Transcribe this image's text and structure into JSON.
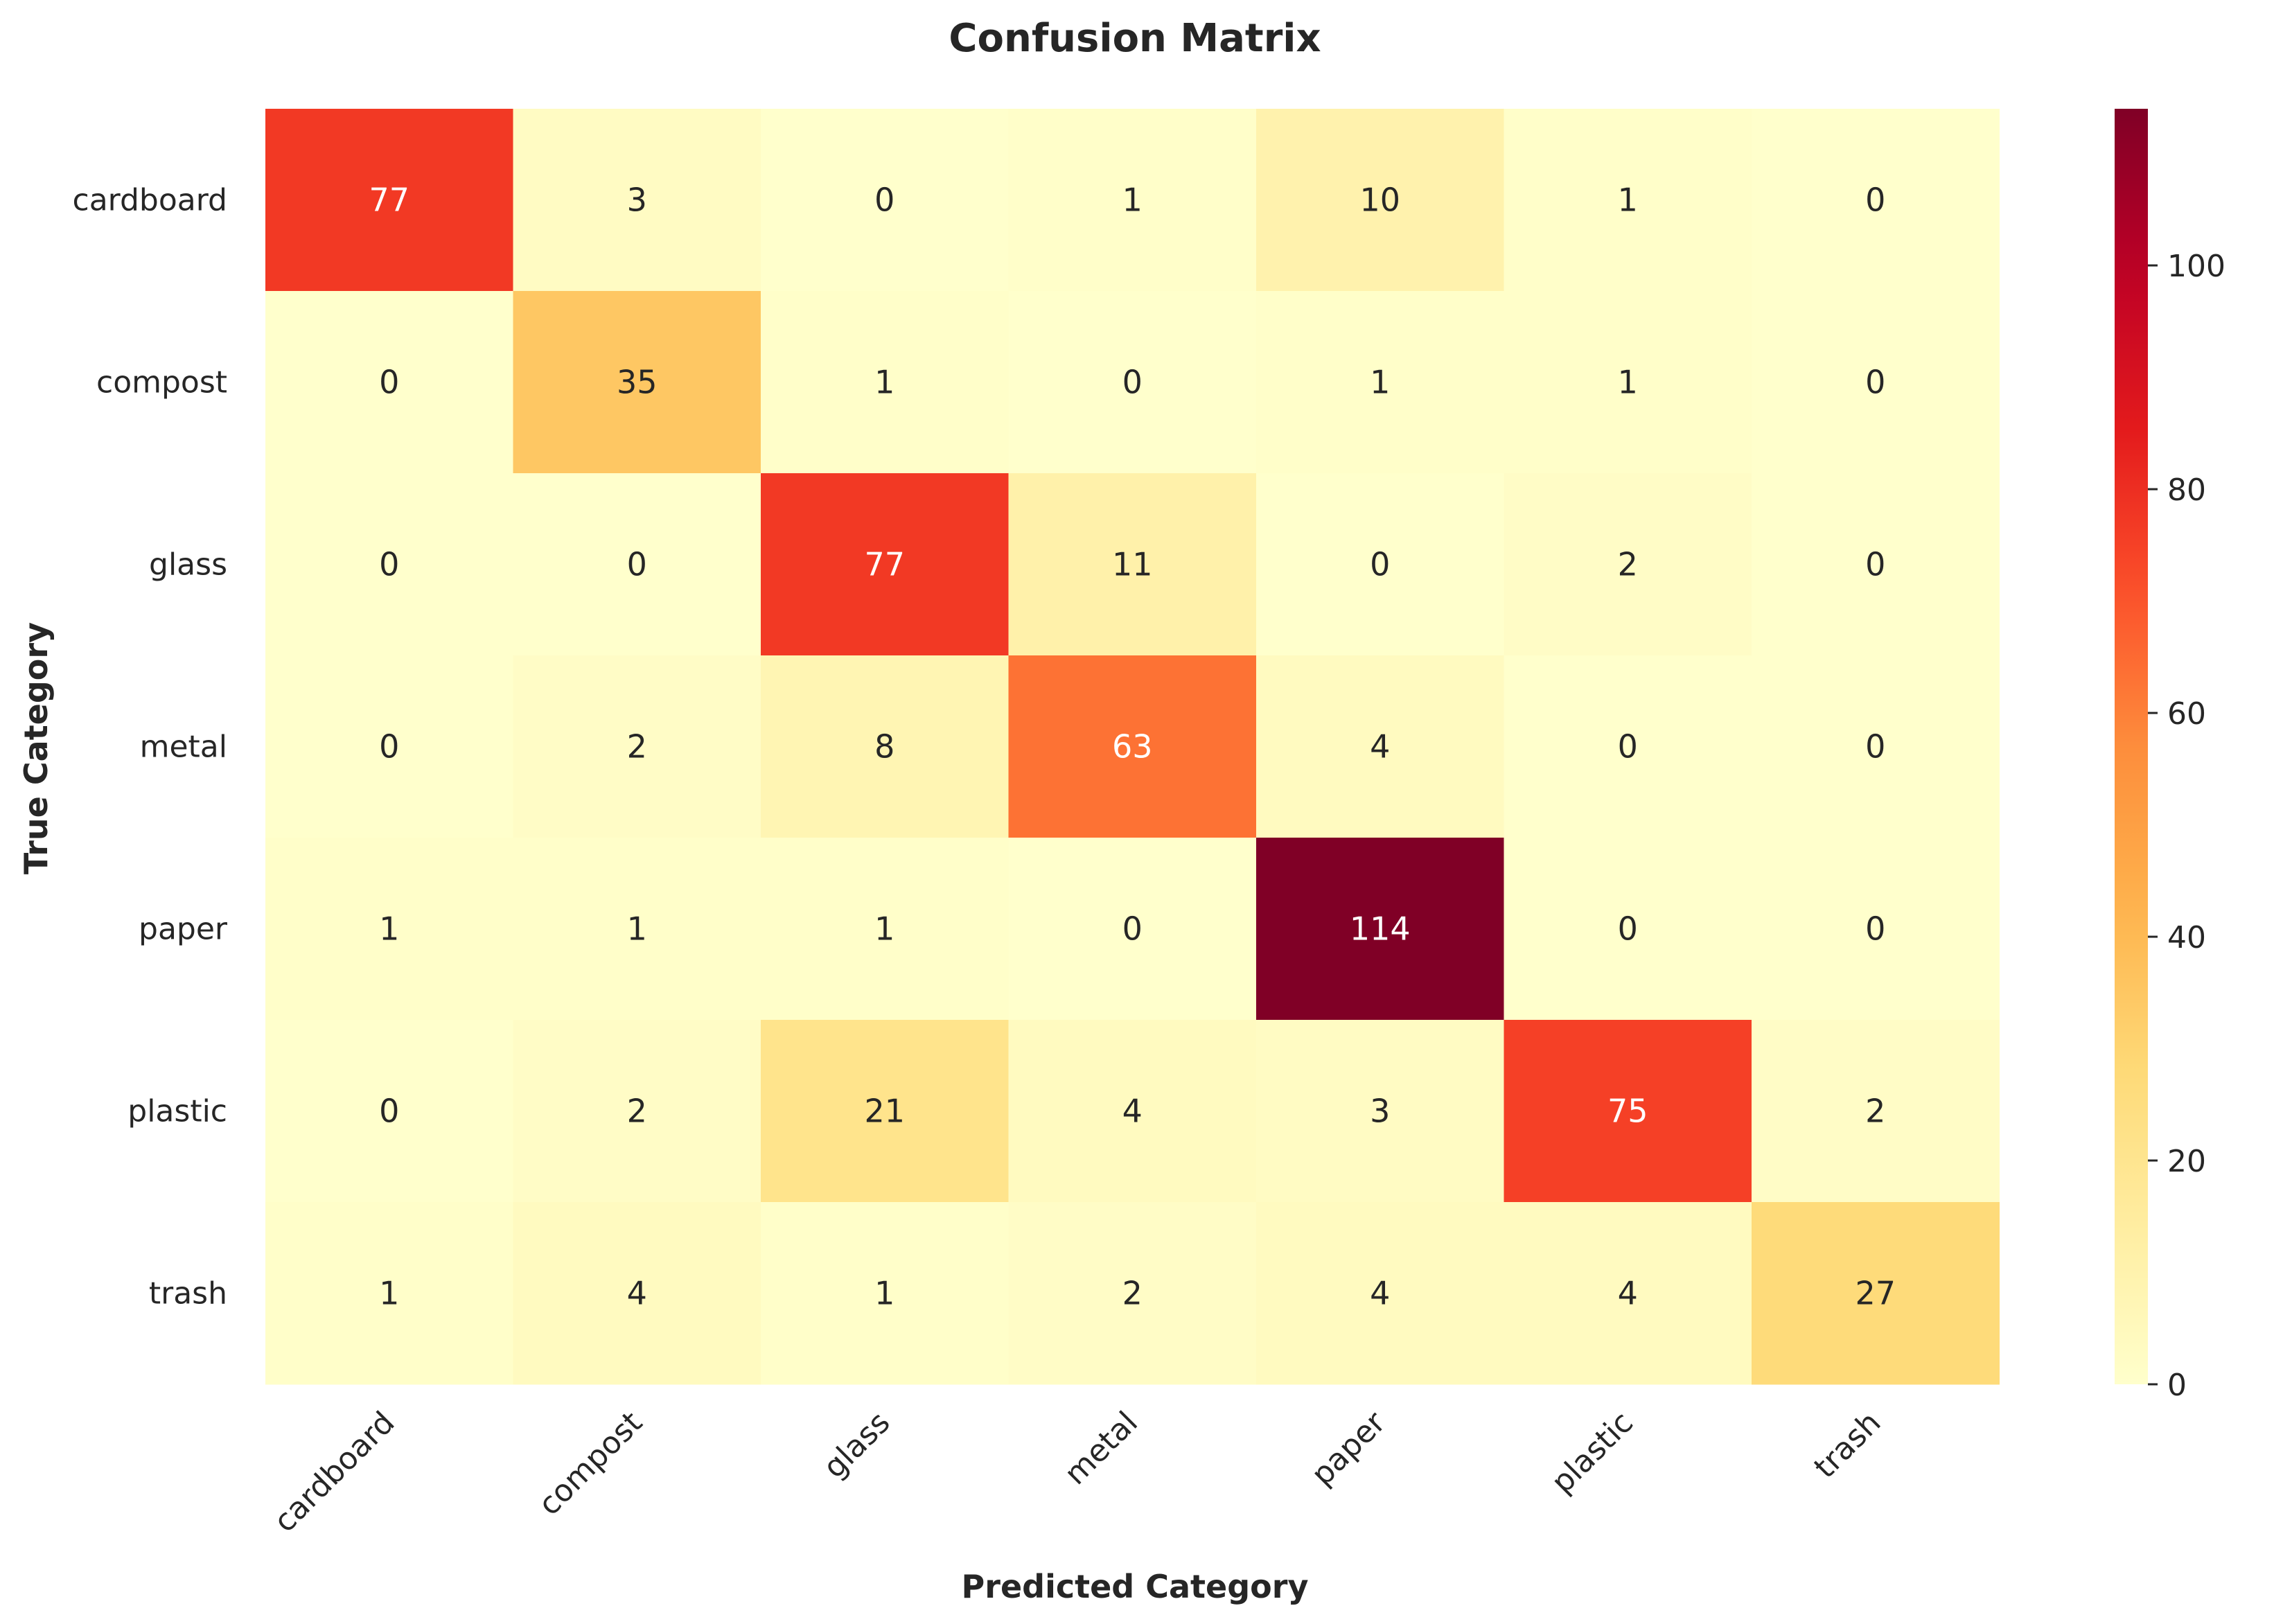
{
  "chart_data": {
    "type": "heatmap",
    "title": "Confusion Matrix",
    "xlabel": "Predicted Category",
    "ylabel": "True Category",
    "x_categories": [
      "cardboard",
      "compost",
      "glass",
      "metal",
      "paper",
      "plastic",
      "trash"
    ],
    "y_categories": [
      "cardboard",
      "compost",
      "glass",
      "metal",
      "paper",
      "plastic",
      "trash"
    ],
    "values": [
      [
        77,
        3,
        0,
        1,
        10,
        1,
        0
      ],
      [
        0,
        35,
        1,
        0,
        1,
        1,
        0
      ],
      [
        0,
        0,
        77,
        11,
        0,
        2,
        0
      ],
      [
        0,
        2,
        8,
        63,
        4,
        0,
        0
      ],
      [
        1,
        1,
        1,
        0,
        114,
        0,
        0
      ],
      [
        0,
        2,
        21,
        4,
        3,
        75,
        2
      ],
      [
        1,
        4,
        1,
        2,
        4,
        4,
        27
      ]
    ],
    "colorscale": "YlOrRd",
    "colorbar": {
      "range": [
        0,
        114
      ],
      "ticks": [
        "0",
        "20",
        "40",
        "60",
        "80",
        "100"
      ],
      "tick_values": [
        0,
        20,
        40,
        60,
        80,
        100
      ]
    },
    "grid": false
  }
}
